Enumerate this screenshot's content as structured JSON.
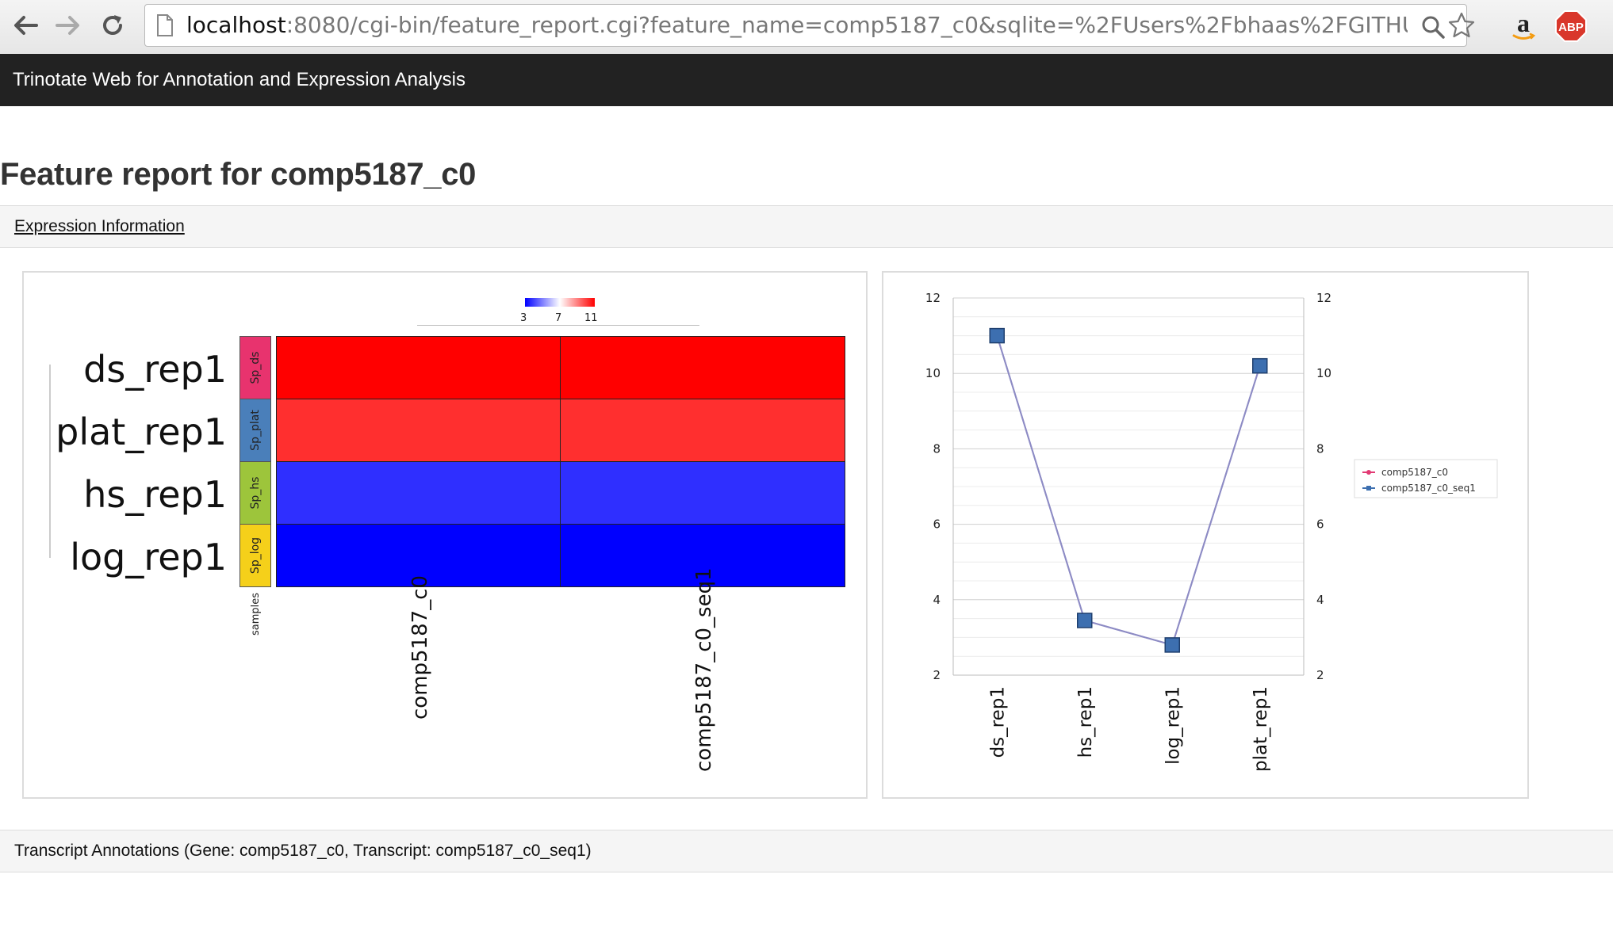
{
  "browser": {
    "url_host": "localhost",
    "url_rest": ":8080/cgi-bin/feature_report.cgi?feature_name=comp5187_c0&sqlite=%2FUsers%2Fbhaas%2FGITHUB..."
  },
  "app": {
    "title": "Trinotate Web for Annotation and Expression Analysis"
  },
  "page": {
    "title": "Feature report for comp5187_c0",
    "expression_section": "Expression Information",
    "annotations_section": "Transcript Annotations (Gene: comp5187_c0, Transcript: comp5187_c0_seq1)"
  },
  "heatmap": {
    "scale_ticks": [
      "3",
      "7",
      "11"
    ],
    "rows": [
      {
        "label": "ds_rep1",
        "side_label": "Sp_ds",
        "side_color": "#e8336e",
        "cell_color": "#ff0000"
      },
      {
        "label": "plat_rep1",
        "side_label": "Sp_plat",
        "side_color": "#4a7fba",
        "cell_color": "#ff2f2f"
      },
      {
        "label": "hs_rep1",
        "side_label": "Sp_hs",
        "side_color": "#9dc53b",
        "cell_color": "#2f2fff"
      },
      {
        "label": "log_rep1",
        "side_label": "Sp_log",
        "side_color": "#f5d01a",
        "cell_color": "#0000ff"
      }
    ],
    "columns": [
      "comp5187_c0",
      "comp5187_c0_seq1"
    ],
    "samples_label": "samples"
  },
  "chart_data": {
    "type": "line",
    "categories": [
      "ds_rep1",
      "hs_rep1",
      "log_rep1",
      "plat_rep1"
    ],
    "series": [
      {
        "name": "comp5187_c0",
        "color": "#e23a74",
        "values": [
          11.0,
          3.45,
          2.8,
          10.2
        ]
      },
      {
        "name": "comp5187_c0_seq1",
        "color": "#3d6fb0",
        "values": [
          11.0,
          3.45,
          2.8,
          10.2
        ]
      }
    ],
    "ylim": [
      2,
      12
    ],
    "yticks": [
      2,
      4,
      6,
      8,
      10,
      12
    ],
    "grid": true,
    "legend": "right"
  }
}
